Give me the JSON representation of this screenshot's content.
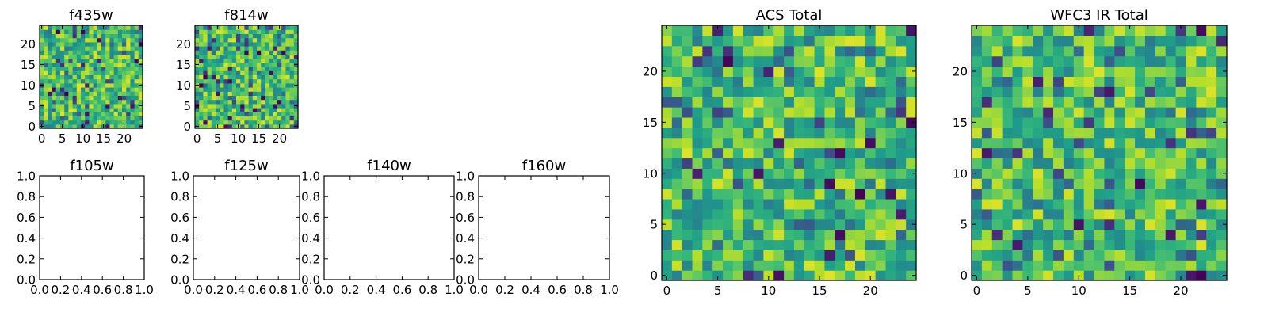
{
  "chart_data": [
    {
      "type": "heatmap",
      "title": "f435w",
      "xticks": [
        "0",
        "5",
        "10",
        "15",
        "20"
      ],
      "yticks": [
        "0",
        "5",
        "10",
        "15",
        "20"
      ],
      "xlim": [
        -0.5,
        24.5
      ],
      "ylim": [
        -0.5,
        24.5
      ],
      "grid": false,
      "grid_size": [
        25,
        25
      ],
      "seed": 11,
      "colormap": "viridis",
      "note_values": "25x25 random noise field"
    },
    {
      "type": "heatmap",
      "title": "f814w",
      "xticks": [
        "0",
        "5",
        "10",
        "15",
        "20"
      ],
      "yticks": [
        "0",
        "5",
        "10",
        "15",
        "20"
      ],
      "xlim": [
        -0.5,
        24.5
      ],
      "ylim": [
        -0.5,
        24.5
      ],
      "grid": false,
      "grid_size": [
        25,
        25
      ],
      "seed": 29,
      "colormap": "viridis"
    },
    {
      "type": "heatmap",
      "title": "f105w",
      "xticks": [
        "0.0",
        "0.2",
        "0.4",
        "0.6",
        "0.8",
        "1.0"
      ],
      "yticks": [
        "0.0",
        "0.2",
        "0.4",
        "0.6",
        "0.8",
        "1.0"
      ],
      "xlim": [
        0,
        1
      ],
      "ylim": [
        0,
        1
      ],
      "grid": false,
      "empty": true
    },
    {
      "type": "heatmap",
      "title": "f125w",
      "xticks": [
        "0.0",
        "0.2",
        "0.4",
        "0.6",
        "0.8",
        "1.0"
      ],
      "yticks": [
        "0.0",
        "0.2",
        "0.4",
        "0.6",
        "0.8",
        "1.0"
      ],
      "xlim": [
        0,
        1
      ],
      "ylim": [
        0,
        1
      ],
      "grid": false,
      "empty": true
    },
    {
      "type": "heatmap",
      "title": "f140w",
      "xticks": [
        "0.0",
        "0.2",
        "0.4",
        "0.6",
        "0.8",
        "1.0"
      ],
      "yticks": [
        "0.0",
        "0.2",
        "0.4",
        "0.6",
        "0.8",
        "1.0"
      ],
      "xlim": [
        0,
        1
      ],
      "ylim": [
        0,
        1
      ],
      "grid": false,
      "empty": true
    },
    {
      "type": "heatmap",
      "title": "f160w",
      "xticks": [
        "0.0",
        "0.2",
        "0.4",
        "0.6",
        "0.8",
        "1.0"
      ],
      "yticks": [
        "0.0",
        "0.2",
        "0.4",
        "0.6",
        "0.8",
        "1.0"
      ],
      "xlim": [
        0,
        1
      ],
      "ylim": [
        0,
        1
      ],
      "grid": false,
      "empty": true
    },
    {
      "type": "heatmap",
      "title": "ACS Total",
      "xticks": [
        "0",
        "5",
        "10",
        "15",
        "20"
      ],
      "yticks": [
        "0",
        "5",
        "10",
        "15",
        "20"
      ],
      "xlim": [
        -0.5,
        24.5
      ],
      "ylim": [
        -0.5,
        24.5
      ],
      "grid": false,
      "grid_size": [
        25,
        25
      ],
      "seed": 47,
      "colormap": "viridis"
    },
    {
      "type": "heatmap",
      "title": "WFC3 IR Total",
      "xticks": [
        "0",
        "5",
        "10",
        "15",
        "20"
      ],
      "yticks": [
        "0",
        "5",
        "10",
        "15",
        "20"
      ],
      "xlim": [
        -0.5,
        24.5
      ],
      "ylim": [
        -0.5,
        24.5
      ],
      "grid": false,
      "grid_size": [
        25,
        25
      ],
      "seed": 83,
      "colormap": "viridis"
    }
  ]
}
